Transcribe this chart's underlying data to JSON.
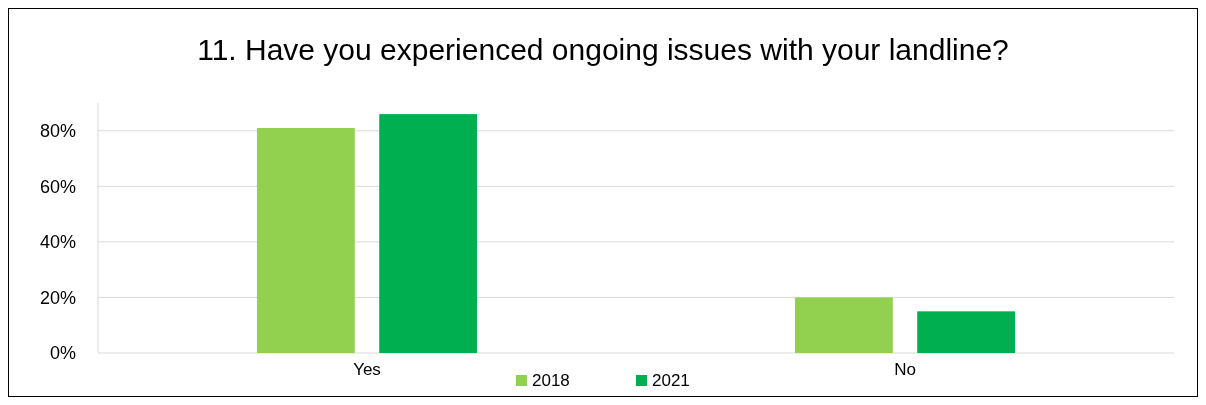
{
  "chart_data": {
    "type": "bar",
    "title": "11. Have you experienced ongoing issues with your landline?",
    "categories": [
      "Yes",
      "No"
    ],
    "series": [
      {
        "name": "2018",
        "color": "#92d050",
        "values": [
          81,
          20
        ]
      },
      {
        "name": "2021",
        "color": "#00b050",
        "values": [
          86,
          15
        ]
      }
    ],
    "ylim": [
      0,
      90
    ],
    "yticks": [
      {
        "value": 0,
        "label": "0%"
      },
      {
        "value": 20,
        "label": "20%"
      },
      {
        "value": 40,
        "label": "40%"
      },
      {
        "value": 60,
        "label": "60%"
      },
      {
        "value": 80,
        "label": "80%"
      }
    ],
    "grid": "y",
    "legend": "bottom"
  }
}
